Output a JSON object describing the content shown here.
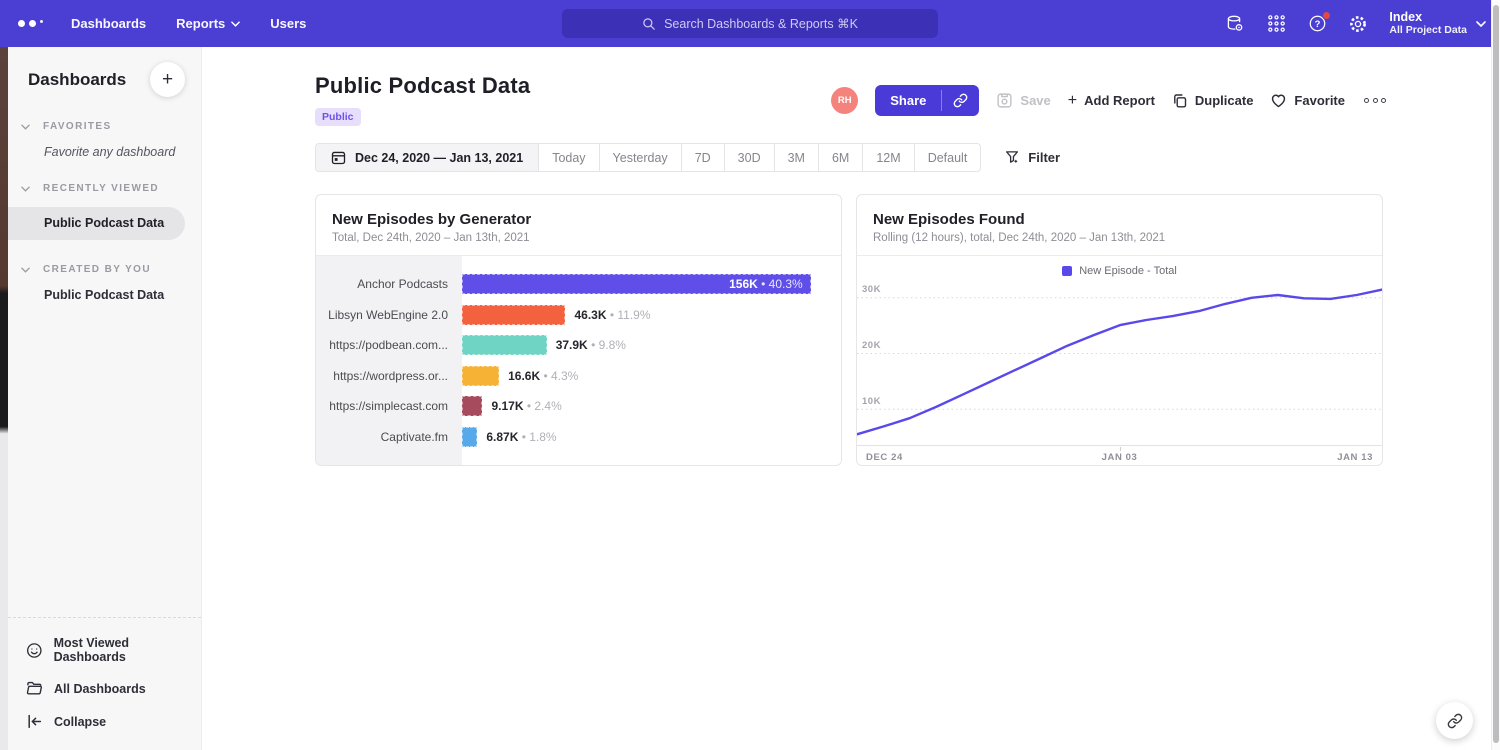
{
  "topnav": {
    "items": [
      "Dashboards",
      "Reports",
      "Users"
    ],
    "search_placeholder": "Search Dashboards & Reports ⌘K",
    "project_name": "Index",
    "project_subtitle": "All Project Data"
  },
  "sidebar": {
    "title": "Dashboards",
    "sections": [
      {
        "label": "FAVORITES"
      },
      {
        "label": "RECENTLY VIEWED"
      },
      {
        "label": "CREATED BY YOU"
      }
    ],
    "favorites_placeholder": "Favorite any dashboard",
    "recently_viewed_item": "Public Podcast Data",
    "created_item": "Public Podcast Data",
    "footer": [
      "Most Viewed Dashboards",
      "All Dashboards",
      "Collapse"
    ]
  },
  "header": {
    "title": "Public Podcast Data",
    "badge": "Public",
    "avatar": "RH",
    "share": "Share",
    "save": "Save",
    "add_report": "Add Report",
    "duplicate": "Duplicate",
    "favorite": "Favorite"
  },
  "controls": {
    "date_range": "Dec 24, 2020 — Jan 13, 2021",
    "presets": [
      "Today",
      "Yesterday",
      "7D",
      "30D",
      "3M",
      "6M",
      "12M",
      "Default"
    ],
    "filter": "Filter"
  },
  "chart_data": [
    {
      "type": "bar",
      "orientation": "horizontal",
      "title": "New Episodes by Generator",
      "subtitle": "Total, Dec 24th, 2020 – Jan 13th, 2021",
      "categories": [
        "Anchor Podcasts",
        "Libsyn WebEngine 2.0",
        "https://podbean.com...",
        "https://wordpress.or...",
        "https://simplecast.com",
        "Captivate.fm"
      ],
      "values": [
        156000,
        46300,
        37900,
        16600,
        9170,
        6870
      ],
      "value_labels": [
        "156K",
        "46.3K",
        "37.9K",
        "16.6K",
        "9.17K",
        "6.87K"
      ],
      "percent_labels": [
        "40.3%",
        "11.9%",
        "9.8%",
        "4.3%",
        "2.4%",
        "1.8%"
      ],
      "bar_colors": [
        "#5f4fe8",
        "#f4613e",
        "#6fd4c3",
        "#f6b234",
        "#a64a5e",
        "#58a9e9"
      ],
      "xlim": [
        0,
        165000
      ]
    },
    {
      "type": "line",
      "title": "New Episodes Found",
      "subtitle": "Rolling (12 hours), total, Dec 24th, 2020 – Jan 13th, 2021",
      "legend": [
        {
          "label": "New Episode - Total",
          "color": "#5a49ea"
        }
      ],
      "x_range": [
        "Dec 24, 2020",
        "Jan 13, 2021"
      ],
      "x_tick_labels": [
        "DEC 24",
        "JAN 03",
        "JAN 13"
      ],
      "y_tick_labels": [
        "30K",
        "20K",
        "10K"
      ],
      "y_ticks": [
        30000,
        20000,
        10000
      ],
      "ylim": [
        0,
        34000
      ],
      "values": [
        5500,
        6900,
        8400,
        10400,
        12600,
        14800,
        17000,
        19200,
        21400,
        23300,
        25100,
        26000,
        26700,
        27600,
        28900,
        30000,
        30500,
        29900,
        29800,
        30500,
        31500
      ],
      "grid": true,
      "legend_position": "top-center"
    }
  ]
}
